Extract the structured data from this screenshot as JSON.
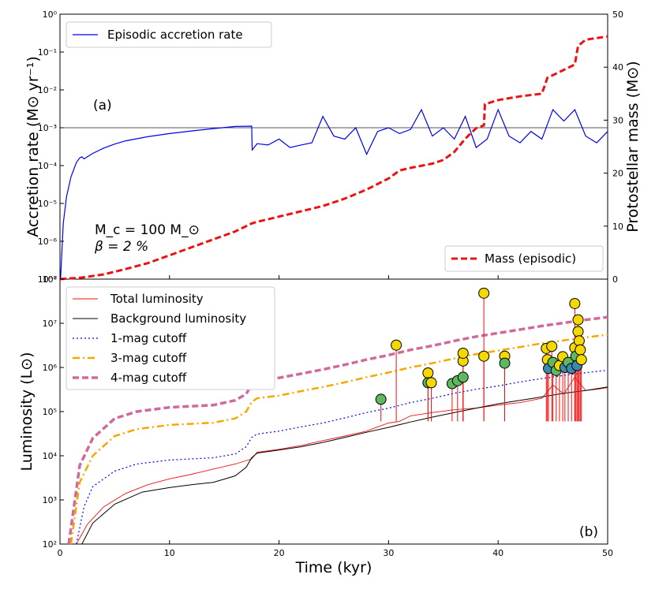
{
  "figure": {
    "panel_labels": [
      "(a)",
      "(b)"
    ],
    "annotation_mc": "M_c = 100 M_⊙",
    "annotation_beta": "β = 2 %"
  },
  "chart_data": [
    {
      "type": "line",
      "panel": "(a)",
      "xlabel": "",
      "ylabel_left": "Accretion rate (M⊙ yr⁻¹)",
      "ylabel_right": "Protostellar mass (M⊙)",
      "xlim": [
        0,
        50
      ],
      "ylim_left": [
        1e-07,
        1
      ],
      "yscale_left": "log",
      "ylim_right": [
        0,
        50
      ],
      "x_ticks": [
        0,
        10,
        20,
        30,
        40,
        50
      ],
      "y_ticks_left": [
        "10⁻⁷",
        "10⁻⁶",
        "10⁻⁵",
        "10⁻⁴",
        "10⁻³",
        "10⁻²",
        "10⁻¹",
        "10⁰"
      ],
      "y_ticks_right": [
        0,
        10,
        20,
        30,
        40,
        50
      ],
      "reference_line": {
        "y": 0.001,
        "color": "#555555"
      },
      "series": [
        {
          "name": "Episodic accretion rate",
          "axis": "left",
          "color": "#0000ee",
          "x": [
            0.05,
            0.3,
            0.6,
            1.0,
            1.5,
            1.8,
            2.0,
            2.2,
            3,
            4,
            5,
            6,
            8,
            10,
            12,
            14,
            16,
            17.5,
            17.55,
            18,
            19,
            20,
            21,
            22,
            23,
            24,
            25,
            26,
            27,
            28,
            29,
            30,
            31,
            32,
            33,
            34,
            35,
            36,
            37,
            38,
            39,
            40,
            41,
            42,
            43,
            44,
            45,
            46,
            47,
            48,
            49,
            50
          ],
          "y": [
            1e-07,
            3e-06,
            1.5e-05,
            5e-05,
            0.00012,
            0.00016,
            0.00017,
            0.00015,
            0.00021,
            0.00029,
            0.00037,
            0.00045,
            0.00058,
            0.0007,
            0.00082,
            0.00095,
            0.00108,
            0.0011,
            0.00026,
            0.00038,
            0.00035,
            0.0005,
            0.0003,
            0.00035,
            0.0004,
            0.002,
            0.0006,
            0.0005,
            0.001,
            0.0002,
            0.0008,
            0.001,
            0.0007,
            0.0009,
            0.003,
            0.0006,
            0.001,
            0.0005,
            0.002,
            0.0003,
            0.0005,
            0.003,
            0.0006,
            0.0004,
            0.0008,
            0.0005,
            0.003,
            0.0015,
            0.003,
            0.0006,
            0.0004,
            0.0008
          ]
        },
        {
          "name": "Mass (episodic)",
          "axis": "right",
          "color": "#ee1111",
          "x": [
            0,
            2,
            4,
            6,
            8,
            10,
            12,
            14,
            16,
            17.5,
            18,
            20,
            22,
            24,
            26,
            28,
            30,
            31,
            32,
            34,
            35,
            36,
            37,
            38,
            38.7,
            38.8,
            40,
            42,
            44,
            44.5,
            46,
            47,
            47.3,
            48,
            50
          ],
          "y": [
            0,
            0.3,
            0.9,
            1.9,
            3.0,
            4.5,
            6.0,
            7.5,
            9.0,
            10.5,
            10.8,
            11.8,
            12.8,
            13.8,
            15.2,
            16.9,
            19.0,
            20.5,
            21.0,
            21.8,
            22.5,
            24.0,
            26.5,
            28.5,
            29.0,
            33.0,
            33.8,
            34.5,
            35.0,
            38.0,
            39.5,
            40.5,
            44.0,
            45.2,
            45.8
          ]
        }
      ]
    },
    {
      "type": "line",
      "panel": "(b)",
      "xlabel": "Time (kyr)",
      "ylabel": "Luminosity (L⊙)",
      "xlim": [
        0,
        50
      ],
      "ylim": [
        100,
        100000000.0
      ],
      "yscale": "log",
      "x_ticks": [
        0,
        10,
        20,
        30,
        40,
        50
      ],
      "y_ticks": [
        "10²",
        "10³",
        "10⁴",
        "10⁵",
        "10⁶",
        "10⁷",
        "10⁸"
      ],
      "series": [
        {
          "name": "Total luminosity",
          "color": "#ee1111",
          "x": [
            1.5,
            2.5,
            4,
            6,
            8,
            10,
            12,
            14,
            16,
            17.5,
            18,
            20,
            22,
            24,
            26,
            28,
            29,
            30,
            31,
            32,
            34,
            36,
            38,
            40,
            42,
            44,
            45,
            46,
            47,
            48,
            49,
            50
          ],
          "y": [
            100,
            280,
            700,
            1400,
            2200,
            3000,
            3800,
            5000,
            6500,
            8500,
            12000,
            14000,
            17000,
            22000,
            28000,
            36000,
            45000,
            55000,
            60000,
            80000,
            95000,
            110000,
            120000,
            140000,
            160000,
            200000,
            400000,
            250000,
            600000,
            300000,
            320000,
            350000
          ]
        },
        {
          "name": "Background luminosity",
          "color": "#000000",
          "x": [
            2,
            3,
            5,
            7.5,
            10,
            12,
            14,
            16,
            17,
            17.5,
            18,
            20,
            22,
            24,
            26,
            28,
            30,
            32,
            34,
            36,
            38,
            40,
            42,
            44,
            46,
            48,
            50
          ],
          "y": [
            100,
            300,
            800,
            1500,
            1900,
            2200,
            2500,
            3500,
            5500,
            9000,
            11500,
            13500,
            16000,
            20000,
            26000,
            34000,
            44000,
            58000,
            75000,
            95000,
            120000,
            150000,
            180000,
            215000,
            260000,
            300000,
            360000
          ]
        },
        {
          "name": "1-mag cutoff",
          "color": "#0000ee",
          "x": [
            1.5,
            2.2,
            3,
            5,
            7,
            10,
            14,
            16,
            17,
            17.5,
            18,
            20,
            22,
            24,
            26,
            28,
            30,
            32,
            34,
            36,
            38,
            40,
            42,
            44,
            46,
            48,
            50
          ],
          "y": [
            100,
            700,
            2000,
            4500,
            6500,
            8000,
            9000,
            11000,
            16000,
            26000,
            31000,
            36000,
            45000,
            55000,
            72000,
            95000,
            120000,
            160000,
            200000,
            260000,
            320000,
            380000,
            470000,
            560000,
            660000,
            760000,
            870000
          ]
        },
        {
          "name": "3-mag cutoff",
          "color": "#f5a800",
          "x": [
            1.0,
            1.8,
            3,
            5,
            7,
            10,
            14,
            16,
            17,
            17.5,
            18,
            20,
            22,
            24,
            26,
            28,
            30,
            32,
            34,
            36,
            38,
            40,
            42,
            44,
            46,
            48,
            50
          ],
          "y": [
            100,
            2500,
            10000,
            28000,
            40000,
            50000,
            56000,
            70000,
            100000,
            165000,
            200000,
            230000,
            290000,
            360000,
            460000,
            600000,
            770000,
            1000000,
            1250000,
            1600000,
            2000000,
            2400000,
            2900000,
            3500000,
            4100000,
            4800000,
            5500000
          ]
        },
        {
          "name": "4-mag cutoff",
          "color": "#d06a9a",
          "x": [
            0.8,
            1.8,
            3,
            5,
            7,
            10,
            14,
            16,
            17,
            17.5,
            18,
            20,
            22,
            24,
            26,
            28,
            30,
            32,
            34,
            36,
            38,
            40,
            42,
            44,
            46,
            48,
            50
          ],
          "y": [
            100,
            6000,
            25000,
            70000,
            100000,
            125000,
            140000,
            180000,
            250000,
            420000,
            500000,
            580000,
            720000,
            900000,
            1150000,
            1500000,
            1900000,
            2500000,
            3100000,
            4000000,
            5000000,
            6000000,
            7200000,
            8700000,
            10200000,
            12000000,
            13800000
          ]
        }
      ],
      "markers": [
        {
          "x": 29.3,
          "y": 190000,
          "color": "#5fb85f"
        },
        {
          "x": 30.7,
          "y": 3200000,
          "color": "#f5d800"
        },
        {
          "x": 33.6,
          "y": 750000,
          "color": "#f5d800"
        },
        {
          "x": 33.6,
          "y": 450000,
          "color": "#5fb85f"
        },
        {
          "x": 33.9,
          "y": 450000,
          "color": "#f5d800"
        },
        {
          "x": 35.8,
          "y": 430000,
          "color": "#5fb85f"
        },
        {
          "x": 36.3,
          "y": 500000,
          "color": "#5fb85f"
        },
        {
          "x": 36.8,
          "y": 1400000,
          "color": "#f5d800"
        },
        {
          "x": 36.8,
          "y": 2100000,
          "color": "#f5d800"
        },
        {
          "x": 36.8,
          "y": 600000,
          "color": "#5fb85f"
        },
        {
          "x": 38.7,
          "y": 48000000,
          "color": "#f5d800"
        },
        {
          "x": 38.7,
          "y": 1800000,
          "color": "#f5d800"
        },
        {
          "x": 40.6,
          "y": 1800000,
          "color": "#f5d800"
        },
        {
          "x": 40.6,
          "y": 1250000,
          "color": "#5fb85f"
        },
        {
          "x": 44.4,
          "y": 2700000,
          "color": "#f5d800"
        },
        {
          "x": 44.5,
          "y": 1500000,
          "color": "#f5d800"
        },
        {
          "x": 44.6,
          "y": 950000,
          "color": "#3c8ab0"
        },
        {
          "x": 44.9,
          "y": 3000000,
          "color": "#f5d800"
        },
        {
          "x": 45.0,
          "y": 1300000,
          "color": "#5fb85f"
        },
        {
          "x": 45.3,
          "y": 850000,
          "color": "#5fb85f"
        },
        {
          "x": 45.6,
          "y": 1100000,
          "color": "#f5d800"
        },
        {
          "x": 45.9,
          "y": 1750000,
          "color": "#f5d800"
        },
        {
          "x": 46.1,
          "y": 1000000,
          "color": "#3c8ab0"
        },
        {
          "x": 46.4,
          "y": 1300000,
          "color": "#5fb85f"
        },
        {
          "x": 46.7,
          "y": 950000,
          "color": "#3c8ab0"
        },
        {
          "x": 47.0,
          "y": 28000000,
          "color": "#f5d800"
        },
        {
          "x": 47.0,
          "y": 2800000,
          "color": "#f5d800"
        },
        {
          "x": 47.1,
          "y": 1800000,
          "color": "#5fb85f"
        },
        {
          "x": 47.2,
          "y": 1100000,
          "color": "#3c8ab0"
        },
        {
          "x": 47.3,
          "y": 12000000,
          "color": "#f5d800"
        },
        {
          "x": 47.3,
          "y": 6500000,
          "color": "#f5d800"
        },
        {
          "x": 47.4,
          "y": 4000000,
          "color": "#f5d800"
        },
        {
          "x": 47.5,
          "y": 2500000,
          "color": "#f5d800"
        },
        {
          "x": 47.6,
          "y": 1500000,
          "color": "#f5d800"
        }
      ]
    }
  ]
}
